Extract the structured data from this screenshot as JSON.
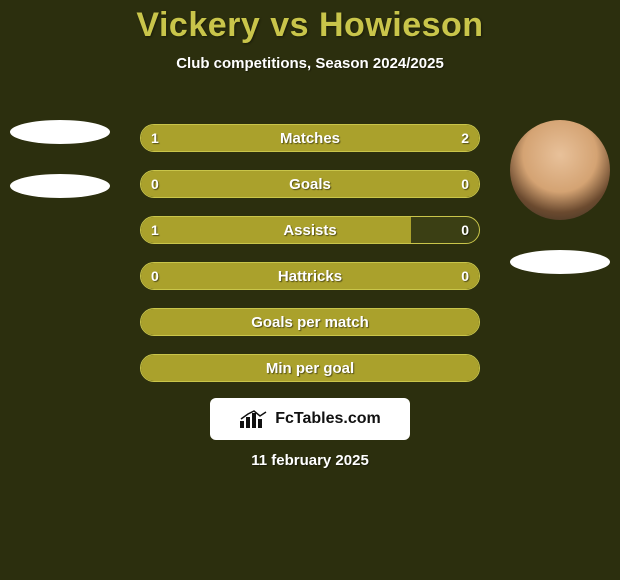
{
  "colors": {
    "background": "#2c2f0e",
    "title": "#c9c54a",
    "subtitle": "#ffffff",
    "stat_text": "#ffffff",
    "bar_full": "#aaa12c",
    "bar_border": "#c9c54a",
    "bar_partial_bg": "#3b3f14",
    "avatar_blank": "#ffffff",
    "watermark_bg": "#ffffff",
    "watermark_text": "#111111",
    "footer_text": "#ffffff"
  },
  "layout": {
    "title_fontsize": 34,
    "subtitle_fontsize": 15,
    "stat_bar_height": 28,
    "stat_bar_radius": 14,
    "stat_row_gap": 18,
    "avatar_diameter": 100
  },
  "header": {
    "title": "Vickery vs Howieson",
    "subtitle": "Club competitions, Season 2024/2025"
  },
  "players": {
    "left": [
      {
        "type": "blank"
      },
      {
        "type": "blank"
      }
    ],
    "right": [
      {
        "type": "face"
      },
      {
        "type": "blank"
      }
    ]
  },
  "stats": [
    {
      "label": "Matches",
      "left_value": "1",
      "right_value": "2",
      "left_pct": 33.3,
      "right_pct": 66.7
    },
    {
      "label": "Goals",
      "left_value": "0",
      "right_value": "0",
      "left_pct": 100,
      "right_pct": 0
    },
    {
      "label": "Assists",
      "left_value": "1",
      "right_value": "0",
      "left_pct": 80,
      "right_pct": 0
    },
    {
      "label": "Hattricks",
      "left_value": "0",
      "right_value": "0",
      "left_pct": 100,
      "right_pct": 0
    },
    {
      "label": "Goals per match",
      "left_value": "",
      "right_value": "",
      "left_pct": 100,
      "right_pct": 0
    },
    {
      "label": "Min per goal",
      "left_value": "",
      "right_value": "",
      "left_pct": 100,
      "right_pct": 0
    }
  ],
  "watermark": {
    "text": "FcTables.com"
  },
  "footer": {
    "date": "11 february 2025"
  }
}
